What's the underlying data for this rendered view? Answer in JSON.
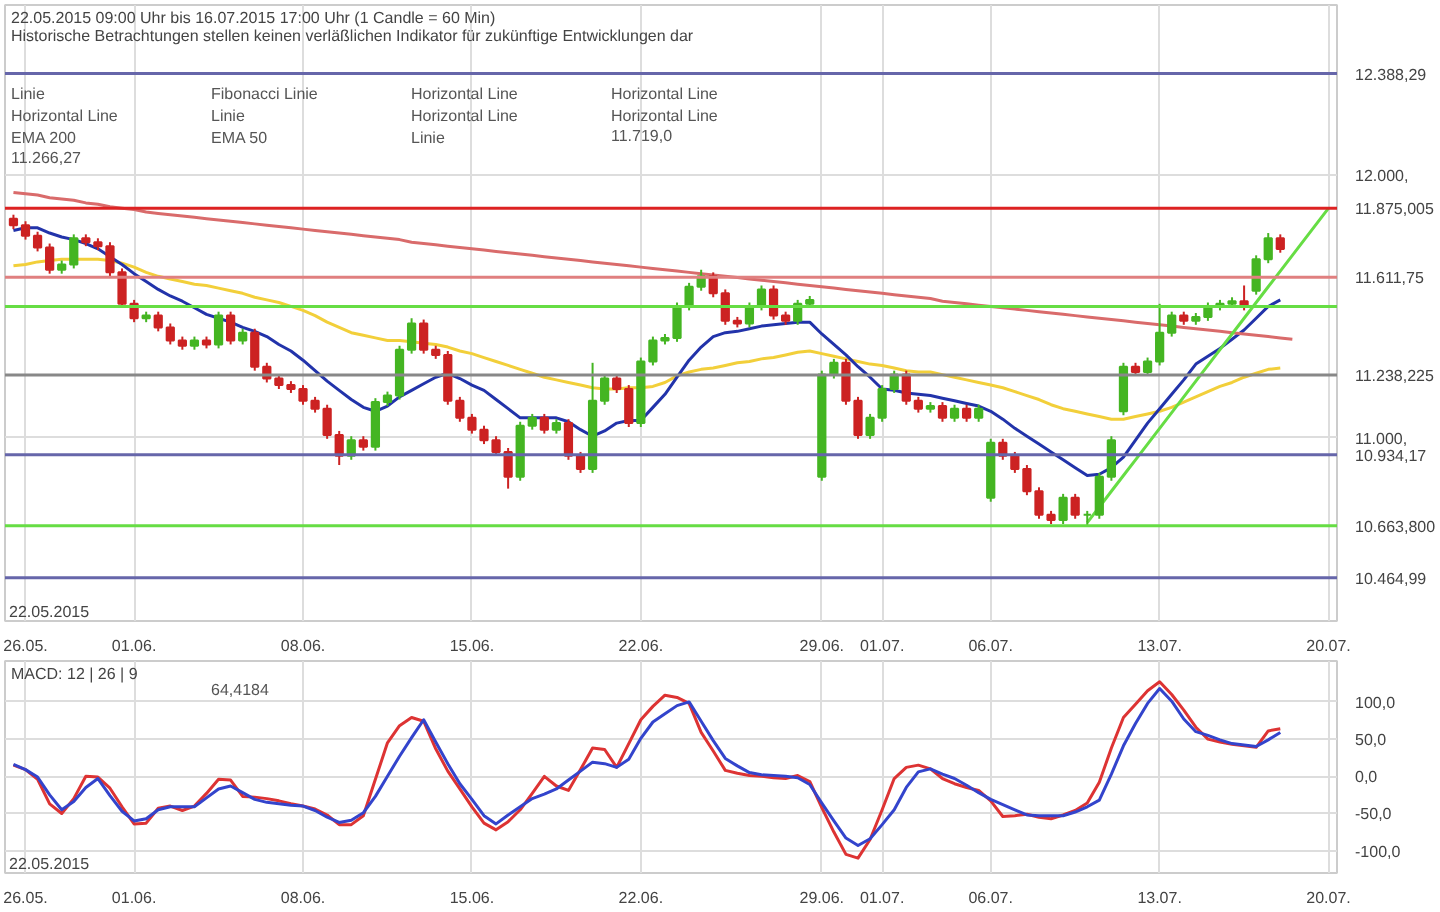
{
  "chart_data": [
    {
      "type": "candlestick",
      "title": "22.05.2015 09:00 Uhr bis 16.07.2015 17:00 Uhr (1 Candle = 60 Min)",
      "subtitle": "Historische Betrachtungen stellen keinen verläßlichen Indikator für zukünftige Entwicklungen dar",
      "xlabel": "22.05.2015",
      "annotations": [
        "Linie",
        "Fibonacci Linie",
        "Horizontal Line",
        "Horizontal Line",
        "Horizontal Line",
        "Linie",
        "Horizontal Line",
        "Horizontal Line",
        "EMA 200",
        "EMA 50",
        "Linie",
        "11.719,0",
        "11.266,27"
      ],
      "categories": [
        null,
        "26.05.",
        null,
        null,
        null,
        null,
        null,
        null,
        null,
        null,
        "01.06.",
        null,
        null,
        null,
        null,
        null,
        null,
        null,
        null,
        null,
        null,
        null,
        null,
        null,
        "08.06.",
        null,
        null,
        null,
        null,
        null,
        null,
        null,
        null,
        null,
        null,
        null,
        null,
        null,
        "15.06.",
        null,
        null,
        null,
        null,
        null,
        null,
        null,
        null,
        null,
        null,
        null,
        null,
        null,
        "22.06.",
        null,
        null,
        null,
        null,
        null,
        null,
        null,
        null,
        null,
        null,
        null,
        null,
        null,
        null,
        "29.06.",
        null,
        null,
        null,
        null,
        "01.07.",
        null,
        null,
        null,
        null,
        null,
        null,
        null,
        null,
        "06.07.",
        null,
        null,
        null,
        null,
        null,
        null,
        null,
        null,
        null,
        null,
        null,
        null,
        null,
        "13.07.",
        null,
        null,
        null,
        null,
        null,
        null,
        null,
        null,
        null,
        null,
        null,
        null,
        null,
        "20.07."
      ],
      "ohlc": [
        [
          11835,
          11850,
          11795,
          11810
        ],
        [
          11810,
          11825,
          11755,
          11770
        ],
        [
          11770,
          11785,
          11710,
          11725
        ],
        [
          11725,
          11740,
          11625,
          11640
        ],
        [
          11640,
          11675,
          11625,
          11660
        ],
        [
          11660,
          11775,
          11645,
          11760
        ],
        [
          11760,
          11775,
          11730,
          11745
        ],
        [
          11745,
          11760,
          11715,
          11730
        ],
        [
          11730,
          11745,
          11615,
          11630
        ],
        [
          11630,
          11645,
          11495,
          11510
        ],
        [
          11510,
          11525,
          11440,
          11455
        ],
        [
          11455,
          11480,
          11440,
          11465
        ],
        [
          11465,
          11480,
          11405,
          11420
        ],
        [
          11420,
          11435,
          11355,
          11370
        ],
        [
          11370,
          11385,
          11335,
          11350
        ],
        [
          11350,
          11385,
          11335,
          11370
        ],
        [
          11370,
          11385,
          11340,
          11355
        ],
        [
          11355,
          11480,
          11340,
          11465
        ],
        [
          11465,
          11480,
          11355,
          11370
        ],
        [
          11370,
          11415,
          11355,
          11400
        ],
        [
          11400,
          11415,
          11255,
          11270
        ],
        [
          11270,
          11285,
          11210,
          11225
        ],
        [
          11225,
          11240,
          11185,
          11200
        ],
        [
          11200,
          11215,
          11170,
          11185
        ],
        [
          11185,
          11200,
          11125,
          11140
        ],
        [
          11140,
          11155,
          11095,
          11110
        ],
        [
          11110,
          11125,
          10995,
          11010
        ],
        [
          11010,
          11025,
          10895,
          10930
        ],
        [
          10930,
          11005,
          10915,
          10990
        ],
        [
          10990,
          11005,
          10950,
          10965
        ],
        [
          10965,
          11150,
          10950,
          11135
        ],
        [
          11135,
          11175,
          11120,
          11160
        ],
        [
          11160,
          11350,
          11145,
          11335
        ],
        [
          11335,
          11455,
          11320,
          11435
        ],
        [
          11435,
          11450,
          11320,
          11335
        ],
        [
          11335,
          11350,
          11300,
          11315
        ],
        [
          11315,
          11330,
          11125,
          11140
        ],
        [
          11140,
          11155,
          11060,
          11075
        ],
        [
          11075,
          11090,
          11015,
          11030
        ],
        [
          11030,
          11045,
          10975,
          10990
        ],
        [
          10990,
          11005,
          10930,
          10945
        ],
        [
          10945,
          10960,
          10805,
          10850
        ],
        [
          10850,
          11060,
          10835,
          11045
        ],
        [
          11045,
          11090,
          11030,
          11075
        ],
        [
          11075,
          11090,
          11015,
          11030
        ],
        [
          11030,
          11070,
          11015,
          11055
        ],
        [
          11055,
          11070,
          10915,
          10930
        ],
        [
          10930,
          10945,
          10865,
          10880
        ],
        [
          10880,
          11285,
          10865,
          11140
        ],
        [
          11140,
          11240,
          11125,
          11225
        ],
        [
          11225,
          11240,
          11170,
          11185
        ],
        [
          11185,
          11200,
          11040,
          11055
        ],
        [
          11055,
          11305,
          11040,
          11290
        ],
        [
          11290,
          11385,
          11275,
          11370
        ],
        [
          11370,
          11395,
          11355,
          11380
        ],
        [
          11380,
          11515,
          11365,
          11500
        ],
        [
          11500,
          11590,
          11485,
          11575
        ],
        [
          11575,
          11640,
          11560,
          11615
        ],
        [
          11615,
          11630,
          11535,
          11550
        ],
        [
          11550,
          11565,
          11430,
          11445
        ],
        [
          11445,
          11460,
          11420,
          11435
        ],
        [
          11435,
          11515,
          11420,
          11500
        ],
        [
          11500,
          11580,
          11485,
          11565
        ],
        [
          11565,
          11580,
          11450,
          11465
        ],
        [
          11465,
          11480,
          11430,
          11445
        ],
        [
          11445,
          11525,
          11430,
          11510
        ],
        [
          11510,
          11540,
          11495,
          11525
        ],
        [
          10850,
          11255,
          10835,
          11240
        ],
        [
          11240,
          11300,
          11225,
          11285
        ],
        [
          11285,
          11300,
          11125,
          11140
        ],
        [
          11140,
          11155,
          10995,
          11010
        ],
        [
          11010,
          11090,
          10995,
          11075
        ],
        [
          11075,
          11200,
          11060,
          11185
        ],
        [
          11185,
          11255,
          11170,
          11240
        ],
        [
          11240,
          11255,
          11125,
          11140
        ],
        [
          11140,
          11155,
          11095,
          11110
        ],
        [
          11110,
          11135,
          11095,
          11120
        ],
        [
          11120,
          11135,
          11060,
          11075
        ],
        [
          11075,
          11125,
          11060,
          11110
        ],
        [
          11110,
          11125,
          11060,
          11075
        ],
        [
          11075,
          11125,
          11060,
          11110
        ],
        [
          10770,
          10995,
          10755,
          10980
        ],
        [
          10980,
          10995,
          10915,
          10930
        ],
        [
          10930,
          10945,
          10865,
          10880
        ],
        [
          10880,
          10895,
          10780,
          10795
        ],
        [
          10795,
          10810,
          10690,
          10705
        ],
        [
          10705,
          10720,
          10670,
          10685
        ],
        [
          10685,
          10785,
          10670,
          10770
        ],
        [
          10770,
          10785,
          10690,
          10705
        ],
        [
          10705,
          10720,
          10665,
          10705
        ],
        [
          10705,
          10865,
          10690,
          10850
        ],
        [
          10850,
          11005,
          10835,
          10990
        ],
        [
          11100,
          11285,
          11085,
          11270
        ],
        [
          11270,
          11285,
          11235,
          11250
        ],
        [
          11250,
          11305,
          11235,
          11290
        ],
        [
          11290,
          11510,
          11275,
          11400
        ],
        [
          11400,
          11480,
          11385,
          11465
        ],
        [
          11465,
          11480,
          11430,
          11445
        ],
        [
          11445,
          11475,
          11430,
          11460
        ],
        [
          11460,
          11515,
          11445,
          11500
        ],
        [
          11500,
          11525,
          11485,
          11510
        ],
        [
          11510,
          11535,
          11495,
          11520
        ],
        [
          11520,
          11580,
          11485,
          11500
        ],
        [
          11560,
          11695,
          11545,
          11680
        ],
        [
          11680,
          11780,
          11665,
          11760
        ],
        [
          11760,
          11775,
          11705,
          11719
        ],
        null,
        null,
        null,
        null
      ],
      "series": [
        {
          "type": "line",
          "color": "#f2cf3a",
          "values": [
            11655,
            11660,
            11670,
            11675,
            11680,
            11680,
            11680,
            11680,
            11675,
            11665,
            11650,
            11630,
            11615,
            11605,
            11595,
            11585,
            11580,
            11570,
            11560,
            11550,
            11535,
            11525,
            11515,
            11500,
            11485,
            11465,
            11440,
            11420,
            11400,
            11390,
            11380,
            11370,
            11370,
            11365,
            11360,
            11355,
            11345,
            11330,
            11320,
            11305,
            11290,
            11275,
            11260,
            11245,
            11230,
            11220,
            11210,
            11200,
            11190,
            11185,
            11185,
            11190,
            11190,
            11195,
            11210,
            11235,
            11250,
            11260,
            11265,
            11275,
            11285,
            11290,
            11300,
            11305,
            11315,
            11325,
            11330,
            11320,
            11310,
            11300,
            11290,
            11280,
            11275,
            11265,
            11255,
            11250,
            11250,
            11240,
            11230,
            11220,
            11210,
            11200,
            11190,
            11175,
            11160,
            11145,
            11125,
            11110,
            11100,
            11090,
            11080,
            11070,
            11070,
            11080,
            11090,
            11100,
            11115,
            11135,
            11155,
            11175,
            11195,
            11210,
            11230,
            11245,
            11260,
            11265,
            null,
            null,
            null,
            null
          ]
        },
        {
          "type": "line",
          "color": "#2233aa",
          "values": [
            11790,
            11800,
            11800,
            11780,
            11765,
            11755,
            11740,
            11720,
            11690,
            11660,
            11625,
            11595,
            11565,
            11540,
            11520,
            11495,
            11470,
            11455,
            11440,
            11420,
            11405,
            11385,
            11355,
            11330,
            11295,
            11255,
            11215,
            11180,
            11145,
            11115,
            11100,
            11120,
            11155,
            11180,
            11205,
            11230,
            11245,
            11225,
            11200,
            11180,
            11145,
            11110,
            11075,
            11075,
            11075,
            11075,
            11060,
            11030,
            11005,
            11025,
            11055,
            11065,
            11065,
            11115,
            11165,
            11230,
            11295,
            11345,
            11385,
            11400,
            11405,
            11415,
            11425,
            11430,
            11435,
            11440,
            11440,
            11395,
            11355,
            11315,
            11270,
            11230,
            11185,
            11180,
            11170,
            11165,
            11160,
            11150,
            11140,
            11130,
            11120,
            11100,
            11070,
            11035,
            11005,
            10975,
            10945,
            10915,
            10885,
            10855,
            10860,
            10885,
            10925,
            10990,
            11055,
            11110,
            11165,
            11220,
            11280,
            11310,
            11340,
            11375,
            11410,
            11455,
            11500,
            11525,
            null,
            null,
            null,
            null
          ]
        },
        {
          "type": "line",
          "color": "#d96b6b",
          "values": [
            11935,
            11930,
            11925,
            11915,
            11910,
            11905,
            11895,
            11890,
            11880,
            11875,
            11870,
            11860,
            11855,
            11850,
            11845,
            11840,
            11835,
            11830,
            11825,
            11820,
            11815,
            11810,
            11805,
            11800,
            11795,
            11790,
            11785,
            11780,
            11775,
            11770,
            11765,
            11760,
            11755,
            11745,
            11740,
            11735,
            11730,
            11725,
            11720,
            11715,
            11710,
            11705,
            11700,
            11695,
            11690,
            11685,
            11680,
            11675,
            11670,
            11665,
            11660,
            11655,
            11650,
            11645,
            11640,
            11635,
            11630,
            11625,
            11620,
            11615,
            11610,
            11605,
            11600,
            11595,
            11590,
            11585,
            11580,
            11575,
            11570,
            11565,
            11560,
            11555,
            11550,
            11545,
            11540,
            11535,
            11530,
            11520,
            11515,
            11510,
            11505,
            11500,
            11495,
            11490,
            11485,
            11480,
            11475,
            11470,
            11465,
            11460,
            11455,
            11450,
            11445,
            11440,
            11435,
            11430,
            11425,
            11420,
            11415,
            11410,
            11405,
            11400,
            11395,
            11390,
            11385,
            11380,
            11375,
            null,
            null,
            null
          ]
        },
        {
          "type": "line",
          "color": "#66dd44",
          "values": [
            null,
            null,
            null,
            null,
            null,
            null,
            null,
            null,
            null,
            null,
            null,
            null,
            null,
            null,
            null,
            null,
            null,
            null,
            null,
            null,
            null,
            null,
            null,
            null,
            null,
            null,
            null,
            null,
            null,
            null,
            null,
            null,
            null,
            null,
            null,
            null,
            null,
            null,
            null,
            null,
            null,
            null,
            null,
            null,
            null,
            null,
            null,
            null,
            null,
            null,
            null,
            null,
            null,
            null,
            null,
            null,
            null,
            null,
            null,
            null,
            null,
            null,
            null,
            null,
            null,
            null,
            null,
            null,
            null,
            null,
            null,
            null,
            null,
            null,
            null,
            null,
            null,
            null,
            null,
            null,
            null,
            null,
            null,
            null,
            null,
            null,
            null,
            null,
            null,
            10675,
            10735,
            10795,
            10855,
            10915,
            10975,
            11035,
            11095,
            11155,
            11215,
            11275,
            11335,
            11395,
            11455,
            11515,
            11575,
            11635,
            11695,
            11755,
            11815,
            11875
          ]
        }
      ],
      "ref_lines": [
        {
          "axis": "y",
          "value": 12388.29,
          "label": "12.388,29",
          "color": "#6666aa"
        },
        {
          "axis": "y",
          "value": 11875.005,
          "label": "11.875,005",
          "color": "#dd2222"
        },
        {
          "axis": "y",
          "value": 11611.75,
          "label": "11.611,75",
          "color": "#e08080"
        },
        {
          "axis": "y",
          "value": 11500,
          "label": null,
          "color": "#66dd44"
        },
        {
          "axis": "y",
          "value": 11238.225,
          "label": "11.238,225",
          "color": "#888888"
        },
        {
          "axis": "y",
          "value": 10934.17,
          "label": "10.934,17",
          "color": "#6666aa"
        },
        {
          "axis": "y",
          "value": 10663.8,
          "label": "10.663,800",
          "color": "#66dd44"
        },
        {
          "axis": "y",
          "value": 10464.99,
          "label": "10.464,99",
          "color": "#6666aa"
        }
      ],
      "ylim": [
        10300,
        12650
      ],
      "yticks": [
        {
          "value": 11000,
          "label": "11.000,"
        },
        {
          "value": 12000,
          "label": "12.000,"
        }
      ],
      "grid": true
    },
    {
      "type": "line",
      "title": "MACD: 12 | 26 | 9",
      "xlabel": "22.05.2015",
      "annotations": [
        "64,4184"
      ],
      "categories": [
        null,
        "26.05.",
        null,
        null,
        null,
        null,
        null,
        null,
        null,
        null,
        "01.06.",
        null,
        null,
        null,
        null,
        null,
        null,
        null,
        null,
        null,
        null,
        null,
        null,
        null,
        "08.06.",
        null,
        null,
        null,
        null,
        null,
        null,
        null,
        null,
        null,
        null,
        null,
        null,
        null,
        "15.06.",
        null,
        null,
        null,
        null,
        null,
        null,
        null,
        null,
        null,
        null,
        null,
        null,
        null,
        "22.06.",
        null,
        null,
        null,
        null,
        null,
        null,
        null,
        null,
        null,
        null,
        null,
        null,
        null,
        null,
        "29.06.",
        null,
        null,
        null,
        null,
        "01.07.",
        null,
        null,
        null,
        null,
        null,
        null,
        null,
        null,
        "06.07.",
        null,
        null,
        null,
        null,
        null,
        null,
        null,
        null,
        null,
        null,
        null,
        null,
        null,
        "13.07.",
        null,
        null,
        null,
        null,
        null,
        null,
        null,
        null,
        null,
        null,
        null,
        null,
        null,
        "20.07."
      ],
      "series": [
        {
          "color": "#dd3333",
          "values": [
            15,
            9,
            -4,
            -37,
            -50,
            -30,
            0,
            -1,
            -16,
            -41,
            -64,
            -63,
            -43,
            -40,
            -46,
            -40,
            -23,
            -4,
            -5,
            -27,
            -28,
            -30,
            -33,
            -37,
            -40,
            -44,
            -52,
            -65,
            -65,
            -53,
            -4,
            45,
            68,
            79,
            74,
            37,
            7,
            -17,
            -41,
            -63,
            -72,
            -61,
            -45,
            -23,
            0,
            -13,
            -19,
            9,
            38,
            36,
            12,
            44,
            76,
            94,
            109,
            106,
            98,
            59,
            34,
            8,
            4,
            1,
            0,
            -2,
            -3,
            1,
            -7,
            -42,
            -75,
            -105,
            -110,
            -85,
            -45,
            -3,
            12,
            15,
            10,
            -3,
            -10,
            -15,
            -19,
            -33,
            -54,
            -53,
            -51,
            -55,
            -57,
            -52,
            -46,
            -36,
            -8,
            38,
            79,
            97,
            115,
            127,
            110,
            89,
            66,
            50,
            46,
            43,
            41,
            39,
            61,
            64,
            null,
            null,
            null,
            null
          ]
        },
        {
          "color": "#3344cc",
          "values": [
            16,
            9,
            -1,
            -25,
            -45,
            -34,
            -15,
            -3,
            -26,
            -47,
            -60,
            -57,
            -45,
            -41,
            -41,
            -41,
            -29,
            -17,
            -13,
            -22,
            -31,
            -35,
            -37,
            -39,
            -40,
            -46,
            -55,
            -62,
            -59,
            -49,
            -27,
            0,
            27,
            52,
            76,
            46,
            17,
            -10,
            -31,
            -53,
            -64,
            -52,
            -41,
            -30,
            -24,
            -17,
            -5,
            7,
            19,
            17,
            12,
            23,
            51,
            73,
            84,
            95,
            100,
            74,
            48,
            24,
            14,
            5,
            2,
            1,
            0,
            -2,
            -11,
            -36,
            -60,
            -83,
            -93,
            -84,
            -65,
            -45,
            -15,
            6,
            10,
            3,
            -3,
            -12,
            -22,
            -31,
            -38,
            -45,
            -52,
            -53,
            -53,
            -53,
            -48,
            -41,
            -32,
            3,
            41,
            71,
            98,
            118,
            101,
            77,
            60,
            55,
            49,
            44,
            42,
            40,
            49,
            59,
            null,
            null,
            null,
            null
          ]
        }
      ],
      "ylim": [
        -130,
        155
      ],
      "yticks": [
        {
          "value": -100,
          "label": "-100,0"
        },
        {
          "value": -50,
          "label": "-50,0"
        },
        {
          "value": 0,
          "label": "0,0"
        },
        {
          "value": 50,
          "label": "50,0"
        },
        {
          "value": 100,
          "label": "100,0"
        }
      ],
      "grid": true
    }
  ]
}
